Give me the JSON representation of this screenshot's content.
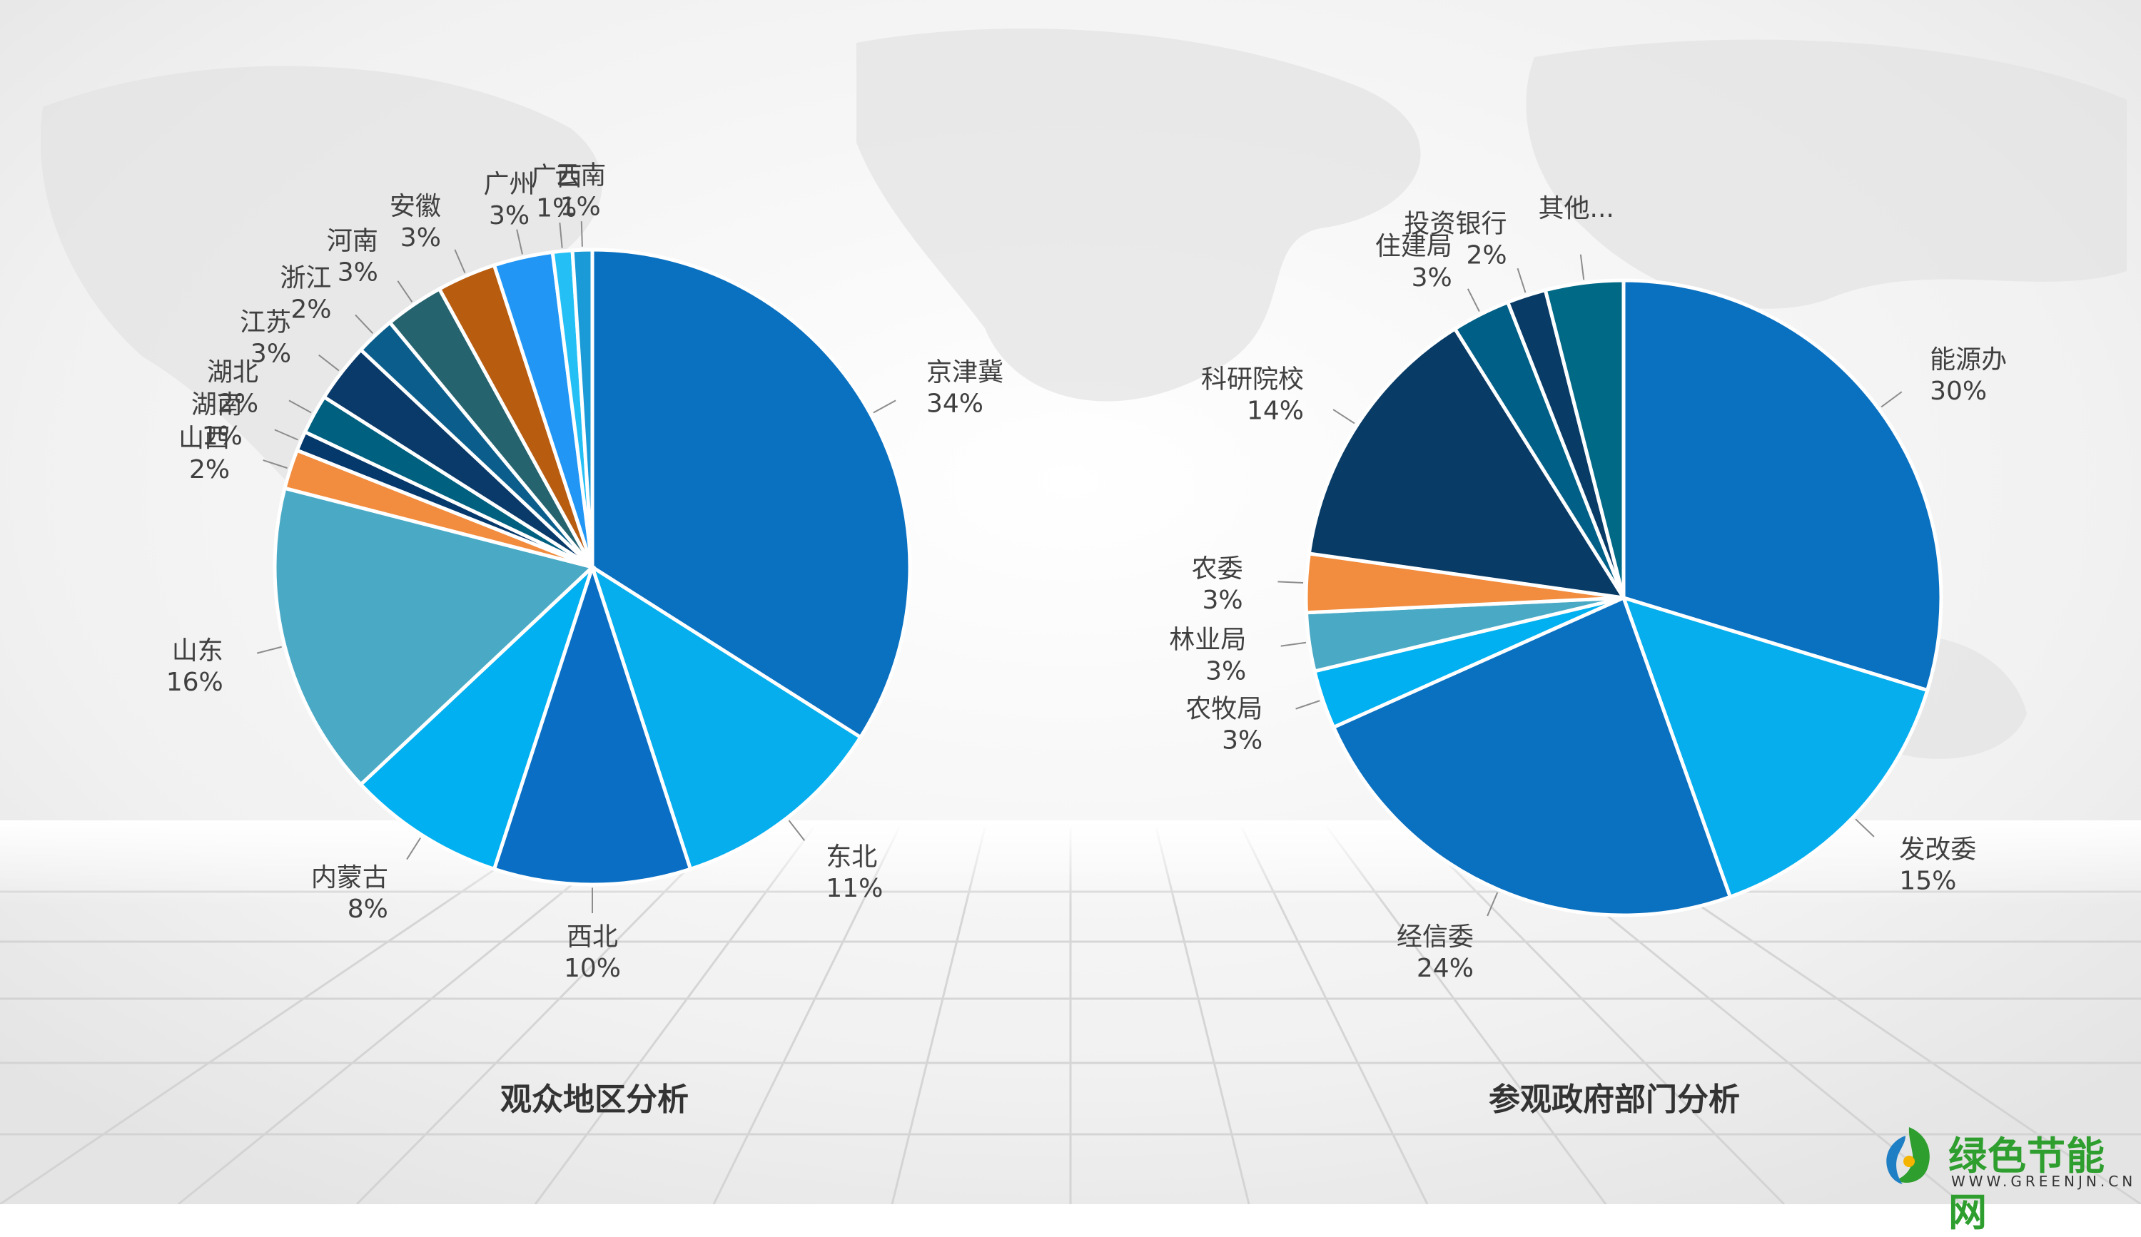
{
  "logo": {
    "name": "绿色节能网",
    "sub": "WWW.GREENJN.CN"
  },
  "chart_data": [
    {
      "type": "pie",
      "title": "观众地区分析",
      "slices": [
        {
          "label": "京津冀",
          "value": 34,
          "pct": "34%",
          "color": "#0a70c0"
        },
        {
          "label": "东北",
          "value": 11,
          "pct": "11%",
          "color": "#06aeee"
        },
        {
          "label": "西北",
          "value": 10,
          "pct": "10%",
          "color": "#0a6fc4"
        },
        {
          "label": "内蒙古",
          "value": 8,
          "pct": "8%",
          "color": "#00b0f0"
        },
        {
          "label": "山东",
          "value": 16,
          "pct": "16%",
          "color": "#4aaac6"
        },
        {
          "label": "山西",
          "value": 2,
          "pct": "2%",
          "color": "#f28c3e"
        },
        {
          "label": "湖南",
          "value": 1,
          "pct": "1%",
          "color": "#05386b"
        },
        {
          "label": "湖北",
          "value": 2,
          "pct": "2%",
          "color": "#006080"
        },
        {
          "label": "江苏",
          "value": 3,
          "pct": "3%",
          "color": "#093a69"
        },
        {
          "label": "浙江",
          "value": 2,
          "pct": "2%",
          "color": "#0b5e8c"
        },
        {
          "label": "河南",
          "value": 3,
          "pct": "3%",
          "color": "#25636e"
        },
        {
          "label": "安徽",
          "value": 3,
          "pct": "3%",
          "color": "#b85c10"
        },
        {
          "label": "广州",
          "value": 3,
          "pct": "3%",
          "color": "#2196f5"
        },
        {
          "label": "广西",
          "value": 1,
          "pct": "1%",
          "color": "#24c0f5"
        },
        {
          "label": "云南",
          "value": 1,
          "pct": "1%",
          "color": "#1a9bd7"
        }
      ]
    },
    {
      "type": "pie",
      "title": "参观政府部门分析",
      "slices": [
        {
          "label": "能源办",
          "value": 30,
          "pct": "30%",
          "color": "#0a70c0"
        },
        {
          "label": "发改委",
          "value": 15,
          "pct": "15%",
          "color": "#06aeee"
        },
        {
          "label": "经信委",
          "value": 24,
          "pct": "24%",
          "color": "#0a70c0"
        },
        {
          "label": "农牧局",
          "value": 3,
          "pct": "3%",
          "color": "#00b0f0"
        },
        {
          "label": "林业局",
          "value": 3,
          "pct": "3%",
          "color": "#4aaac6"
        },
        {
          "label": "农委",
          "value": 3,
          "pct": "3%",
          "color": "#f28c3e"
        },
        {
          "label": "科研院校",
          "value": 14,
          "pct": "14%",
          "color": "#083b66"
        },
        {
          "label": "住建局",
          "value": 3,
          "pct": "3%",
          "color": "#005f86"
        },
        {
          "label": "投资银行",
          "value": 2,
          "pct": "2%",
          "color": "#083b66"
        },
        {
          "label": "其他...",
          "value": 4,
          "pct": "",
          "color": "#006986"
        }
      ]
    }
  ]
}
